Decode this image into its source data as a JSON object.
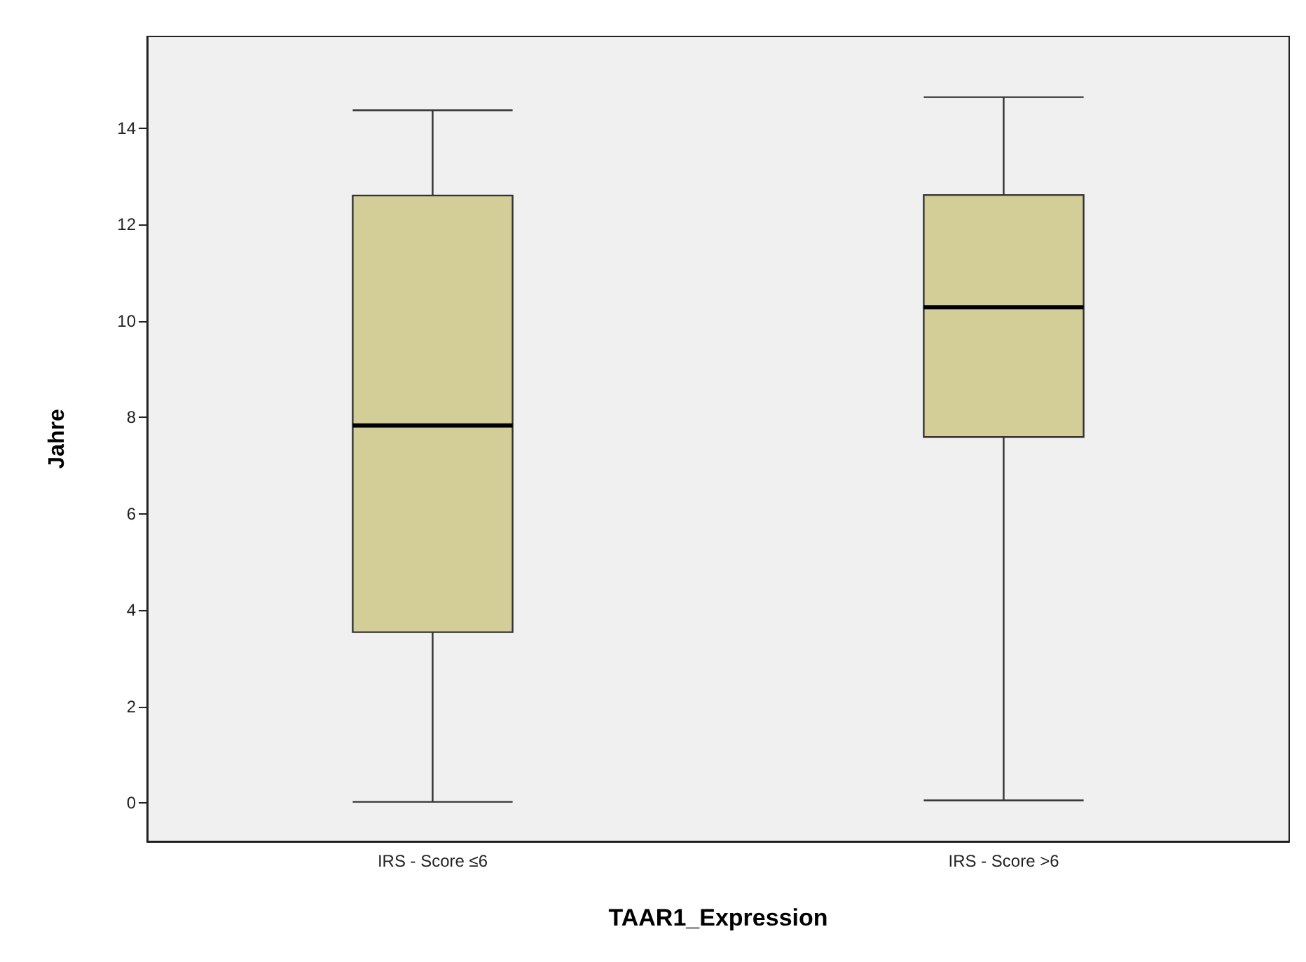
{
  "chart_data": {
    "type": "box",
    "xlabel": "TAAR1_Expression",
    "ylabel": "Jahre",
    "categories": [
      "IRS - Score ≤6",
      "IRS - Score >6"
    ],
    "series": [
      {
        "color": "#d3ce97",
        "boxes": [
          {
            "low": 0.02,
            "q1": 3.54,
            "median": 7.83,
            "q3": 12.6,
            "high": 14.37
          },
          {
            "low": 0.05,
            "q1": 7.59,
            "median": 10.28,
            "q3": 12.61,
            "high": 14.64
          }
        ]
      }
    ],
    "ylim": [
      -0.8,
      15.9
    ],
    "yticks": [
      0,
      2,
      4,
      6,
      8,
      10,
      12,
      14
    ],
    "grid": false
  }
}
